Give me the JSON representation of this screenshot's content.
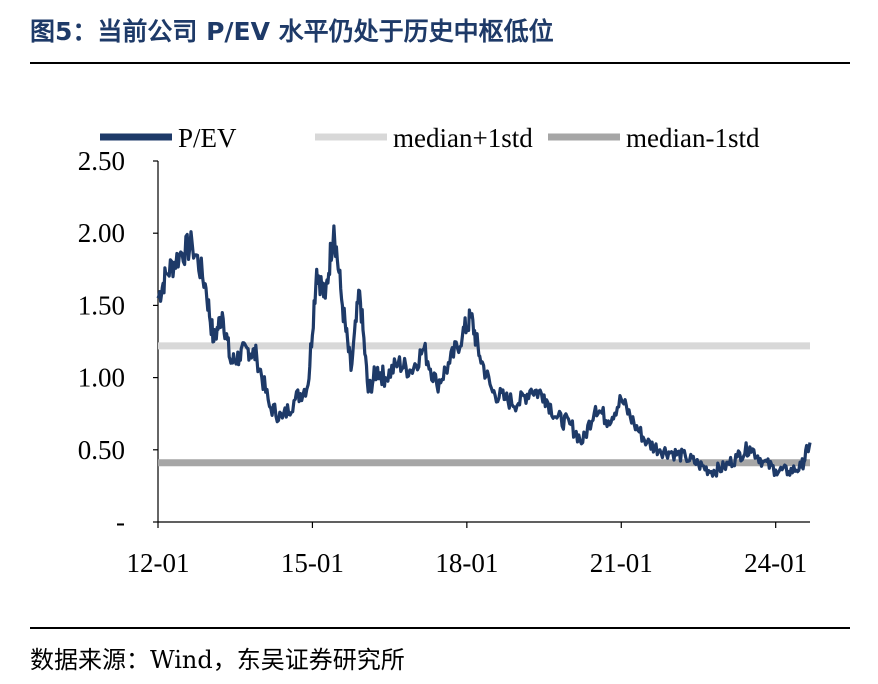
{
  "header": {
    "title": "图5：当前公司 P/EV 水平仍处于历史中枢低位"
  },
  "footer": {
    "source": "数据来源：Wind，东吴证券研究所"
  },
  "chart_data": {
    "type": "line",
    "x_ticks": [
      "12-01",
      "15-01",
      "18-01",
      "21-01",
      "24-01"
    ],
    "y_ticks": [
      "-",
      "0.50",
      "1.00",
      "1.50",
      "2.00",
      "2.50"
    ],
    "ylim": [
      0,
      2.5
    ],
    "xlim": [
      "2012-01",
      "2024-09"
    ],
    "legend_position": "top",
    "series": [
      {
        "name": "P/EV",
        "color": "#1e3a68",
        "x": [
          "2012-01",
          "2012-03",
          "2012-06",
          "2012-09",
          "2012-12",
          "2013-02",
          "2013-04",
          "2013-06",
          "2013-08",
          "2013-10",
          "2013-12",
          "2014-03",
          "2014-06",
          "2014-09",
          "2014-12",
          "2015-02",
          "2015-04",
          "2015-06",
          "2015-08",
          "2015-10",
          "2015-12",
          "2016-02",
          "2016-04",
          "2016-06",
          "2016-09",
          "2016-12",
          "2017-03",
          "2017-06",
          "2017-09",
          "2017-12",
          "2018-02",
          "2018-04",
          "2018-07",
          "2018-10",
          "2019-01",
          "2019-04",
          "2019-07",
          "2019-10",
          "2020-01",
          "2020-04",
          "2020-07",
          "2020-10",
          "2021-01",
          "2021-04",
          "2021-07",
          "2021-10",
          "2022-01",
          "2022-04",
          "2022-07",
          "2022-10",
          "2023-01",
          "2023-04",
          "2023-07",
          "2023-10",
          "2024-01",
          "2024-04",
          "2024-07",
          "2024-09"
        ],
        "values": [
          1.55,
          1.72,
          1.85,
          1.92,
          1.65,
          1.25,
          1.45,
          1.1,
          1.15,
          1.2,
          1.15,
          0.8,
          0.72,
          0.85,
          0.95,
          1.75,
          1.55,
          2.05,
          1.5,
          1.05,
          1.6,
          0.9,
          1.05,
          1.0,
          1.1,
          1.05,
          1.2,
          0.95,
          1.1,
          1.3,
          1.42,
          1.15,
          0.9,
          0.85,
          0.82,
          0.92,
          0.88,
          0.72,
          0.68,
          0.55,
          0.8,
          0.7,
          0.85,
          0.68,
          0.55,
          0.5,
          0.48,
          0.45,
          0.4,
          0.35,
          0.38,
          0.45,
          0.52,
          0.42,
          0.36,
          0.35,
          0.38,
          0.55
        ]
      },
      {
        "name": "median+1std",
        "color": "#d8d8d8",
        "value": 1.22
      },
      {
        "name": "median-1std",
        "color": "#a6a6a6",
        "value": 0.41
      }
    ]
  }
}
